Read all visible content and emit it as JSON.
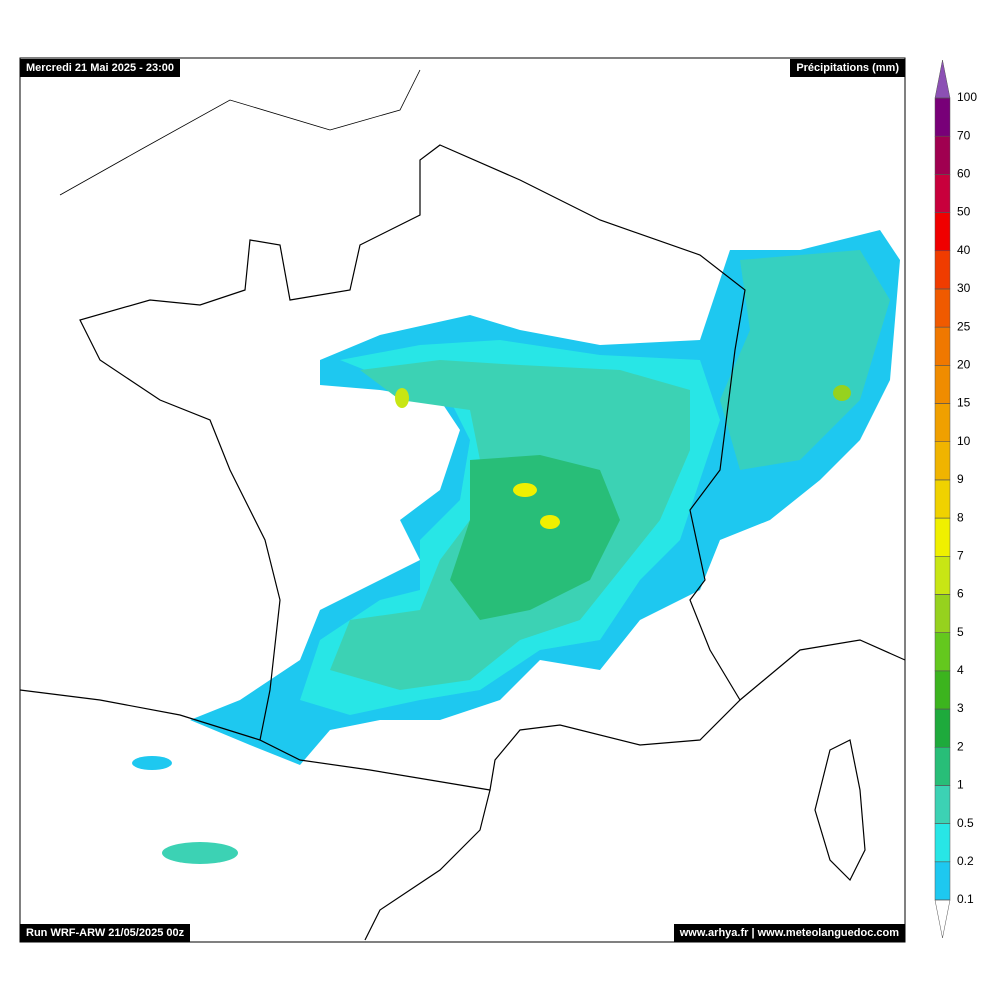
{
  "header": {
    "date": "Mercredi 21 Mai 2025 - 23:00",
    "variable": "Précipitations (mm)"
  },
  "footer": {
    "run": "Run WRF-ARW 21/05/2025 00z",
    "source": "www.arhya.fr | www.meteolanguedoc.com"
  },
  "legend": {
    "levels": [
      0.1,
      0.2,
      0.5,
      1,
      2,
      3,
      4,
      5,
      6,
      7,
      8,
      9,
      10,
      15,
      20,
      25,
      30,
      40,
      50,
      60,
      70,
      100
    ],
    "colors": [
      "#1ec8f0",
      "#28e6e6",
      "#3cd2b4",
      "#28be78",
      "#1eaa3c",
      "#3cb41e",
      "#64c81e",
      "#96d21e",
      "#c8e614",
      "#f0f000",
      "#f0d200",
      "#f0b400",
      "#f0a000",
      "#f08c00",
      "#f07800",
      "#f05a00",
      "#f03c00",
      "#f00000",
      "#c8003c",
      "#a00050",
      "#780078"
    ],
    "over_color": "#8c50b4",
    "under_color": "#ffffff"
  }
}
